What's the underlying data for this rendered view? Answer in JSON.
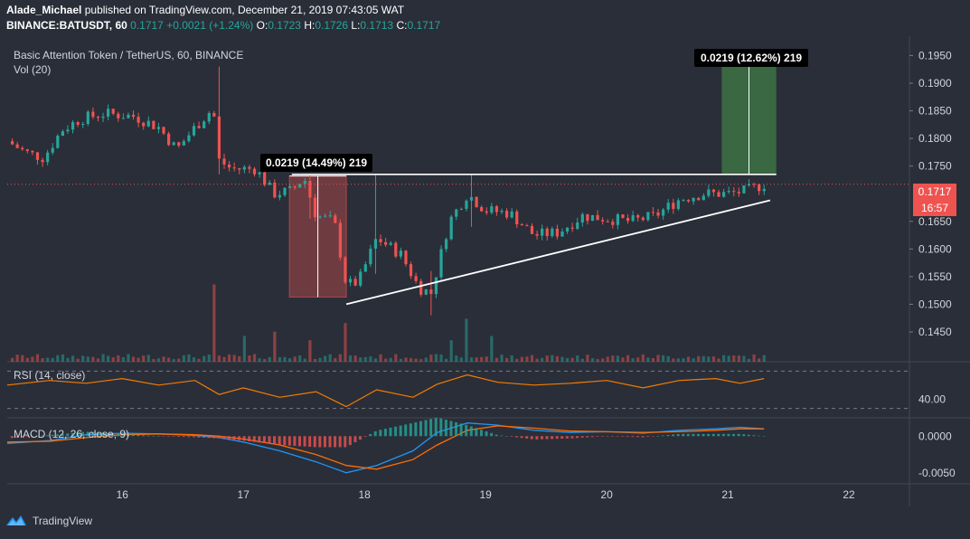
{
  "header": {
    "publisher": "Alade_Michael",
    "published_text": "published on TradingView.com, December 21, 2019 07:43:05 WAT",
    "symbol": "BINANCE:BATUSDT, 60",
    "last": "0.1717",
    "change": "+0.0021 (+1.24%)",
    "o_label": "O:",
    "o": "0.1723",
    "h_label": "H:",
    "h": "0.1726",
    "l_label": "L:",
    "l": "0.1713",
    "c_label": "C:",
    "c": "0.1717"
  },
  "legend": {
    "title": "Basic Attention Token / TetherUS, 60, BINANCE",
    "vol": "Vol (20)",
    "rsi": "RSI (14, close)",
    "macd": "MACD (12, 26, close, 9)"
  },
  "price_badge": {
    "value": "0.1717",
    "countdown": "16:57"
  },
  "annotations": [
    {
      "text": "0.0219 (14.49%) 219"
    },
    {
      "text": "0.0219 (12.62%) 219"
    }
  ],
  "footer": {
    "brand": "TradingView"
  },
  "colors": {
    "up": "#26a69a",
    "down": "#ef5350",
    "rsi": "#f57c00",
    "macd": "#2196f3",
    "signal": "#ff6d00",
    "target": "#4caf50"
  },
  "chart_data": [
    {
      "type": "candlestick",
      "title": "Basic Attention Token / TetherUS, 60, BINANCE",
      "x_ticks": [
        "16",
        "17",
        "18",
        "19",
        "20",
        "21",
        "22"
      ],
      "x_range": [
        15.05,
        22.5
      ],
      "y_ticks": [
        "0.1950",
        "0.1900",
        "0.1850",
        "0.1800",
        "0.1750",
        "0.1650",
        "0.1600",
        "0.1550",
        "0.1500",
        "0.1450"
      ],
      "y_range": [
        0.1396,
        0.1985
      ],
      "last_price": 0.1717,
      "path_points": [
        [
          15.05,
          0.1795
        ],
        [
          15.2,
          0.1775
        ],
        [
          15.35,
          0.1765
        ],
        [
          15.5,
          0.1815
        ],
        [
          15.65,
          0.1835
        ],
        [
          15.85,
          0.1845
        ],
        [
          16.1,
          0.184
        ],
        [
          16.3,
          0.182
        ],
        [
          16.45,
          0.178
        ],
        [
          16.6,
          0.182
        ],
        [
          16.75,
          0.1855
        ],
        [
          16.8,
          0.176
        ],
        [
          16.9,
          0.1745
        ],
        [
          17.1,
          0.1745
        ],
        [
          17.25,
          0.17
        ],
        [
          17.4,
          0.1705
        ],
        [
          17.5,
          0.173
        ],
        [
          17.6,
          0.166
        ],
        [
          17.75,
          0.165
        ],
        [
          17.85,
          0.1535
        ],
        [
          17.95,
          0.154
        ],
        [
          18.1,
          0.162
        ],
        [
          18.3,
          0.159
        ],
        [
          18.45,
          0.153
        ],
        [
          18.55,
          0.152
        ],
        [
          18.7,
          0.165
        ],
        [
          18.85,
          0.17
        ],
        [
          19.0,
          0.167
        ],
        [
          19.2,
          0.1665
        ],
        [
          19.4,
          0.1625
        ],
        [
          19.6,
          0.163
        ],
        [
          19.8,
          0.166
        ],
        [
          20.0,
          0.1655
        ],
        [
          20.2,
          0.165
        ],
        [
          20.4,
          0.166
        ],
        [
          20.6,
          0.169
        ],
        [
          20.8,
          0.17
        ],
        [
          21.0,
          0.17
        ],
        [
          21.15,
          0.1705
        ],
        [
          21.3,
          0.1717
        ]
      ],
      "spikes": [
        {
          "x": 16.8,
          "high": 0.193,
          "low": 0.1735
        },
        {
          "x": 18.1,
          "high": 0.1735,
          "low": 0.1555
        },
        {
          "x": 18.55,
          "high": 0.156,
          "low": 0.148
        },
        {
          "x": 18.9,
          "high": 0.1735,
          "low": 0.164
        },
        {
          "x": 17.55,
          "high": 0.1735,
          "low": 0.1655
        }
      ],
      "resistance_line": {
        "x": [
          17.4,
          21.4
        ],
        "y": [
          0.1735,
          0.1735
        ]
      },
      "ascending_trendline": {
        "x": [
          17.85,
          21.35
        ],
        "y": [
          0.15,
          0.1688
        ]
      },
      "measure_boxes": [
        {
          "x": [
            17.38,
            17.85
          ],
          "y": [
            0.1513,
            0.1732
          ],
          "label": "0.0219 (14.49%) 219"
        },
        {
          "x": [
            20.95,
            21.4
          ],
          "y": [
            0.1735,
            0.1954
          ],
          "label": "0.0219 (12.62%) 219"
        }
      ],
      "volume_spikes": [
        {
          "x": 16.75,
          "v": 0.9
        },
        {
          "x": 17.0,
          "v": 0.3
        },
        {
          "x": 17.25,
          "v": 0.35
        },
        {
          "x": 17.55,
          "v": 0.25
        },
        {
          "x": 17.85,
          "v": 0.45
        },
        {
          "x": 18.7,
          "v": 0.25
        },
        {
          "x": 18.85,
          "v": 0.5
        },
        {
          "x": 19.05,
          "v": 0.3
        }
      ]
    },
    {
      "type": "line",
      "title": "RSI (14, close)",
      "y_ticks": [
        "40.00"
      ],
      "levels": [
        70,
        30
      ],
      "y_range": [
        20,
        80
      ],
      "x": [
        15.05,
        15.4,
        15.7,
        16.0,
        16.3,
        16.6,
        16.8,
        17.0,
        17.3,
        17.6,
        17.85,
        18.1,
        18.4,
        18.6,
        18.85,
        19.1,
        19.4,
        19.7,
        20.0,
        20.3,
        20.6,
        20.9,
        21.1,
        21.3
      ],
      "y": [
        55,
        60,
        57,
        62,
        55,
        60,
        45,
        52,
        42,
        48,
        32,
        50,
        42,
        56,
        66,
        58,
        55,
        57,
        60,
        52,
        60,
        62,
        57,
        62
      ]
    },
    {
      "type": "line",
      "title": "MACD (12, 26, close, 9)",
      "y_ticks": [
        "0.0000",
        "-0.0050"
      ],
      "y_range": [
        -0.0065,
        0.0025
      ],
      "series": [
        {
          "values": [
            -0.001,
            -0.0006,
            0.0002,
            0.0004,
            0.0003,
            0.0001,
            -0.0002,
            -0.0008,
            -0.002,
            -0.0035,
            -0.005,
            -0.004,
            -0.002,
            0.0005,
            0.0018,
            0.0015,
            0.0008,
            0.0005,
            0.0006,
            0.0004,
            0.0008,
            0.001,
            0.0012,
            0.001
          ]
        },
        {
          "values": [
            -0.0008,
            -0.0007,
            -0.0002,
            0.0002,
            0.0003,
            0.0002,
            0.0,
            -0.0004,
            -0.0012,
            -0.0025,
            -0.004,
            -0.0045,
            -0.0032,
            -0.0012,
            0.0008,
            0.0014,
            0.0011,
            0.0007,
            0.0006,
            0.0005,
            0.0006,
            0.0008,
            0.001,
            0.001
          ]
        }
      ],
      "x": [
        15.05,
        15.4,
        15.7,
        16.0,
        16.3,
        16.6,
        16.8,
        17.0,
        17.3,
        17.6,
        17.85,
        18.1,
        18.4,
        18.6,
        18.85,
        19.1,
        19.4,
        19.7,
        20.0,
        20.3,
        20.6,
        20.9,
        21.1,
        21.3
      ]
    }
  ]
}
